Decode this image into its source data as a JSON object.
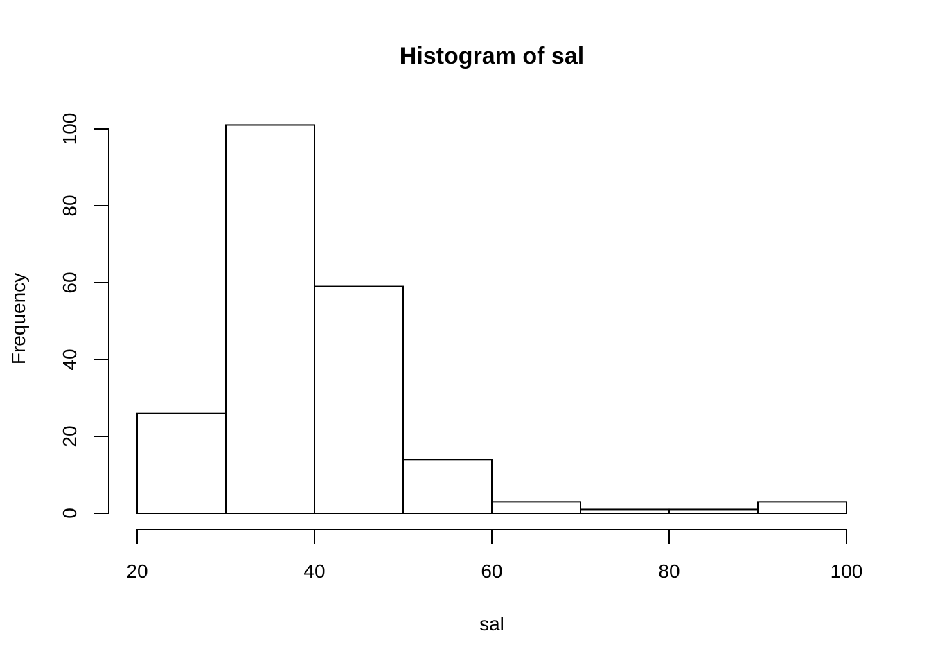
{
  "chart_data": {
    "type": "bar",
    "title": "Histogram of sal",
    "xlabel": "sal",
    "ylabel": "Frequency",
    "bin_edges": [
      20,
      30,
      40,
      50,
      60,
      70,
      80,
      90,
      100
    ],
    "values": [
      26,
      101,
      59,
      14,
      3,
      1,
      1,
      3
    ],
    "xlim": [
      20,
      100
    ],
    "ylim": [
      0,
      101
    ],
    "x_ticks": [
      20,
      40,
      60,
      80,
      100
    ],
    "y_ticks": [
      0,
      20,
      40,
      60,
      80,
      100
    ],
    "grid": false,
    "colors": {
      "fill": "#ffffff",
      "stroke": "#000000"
    }
  }
}
